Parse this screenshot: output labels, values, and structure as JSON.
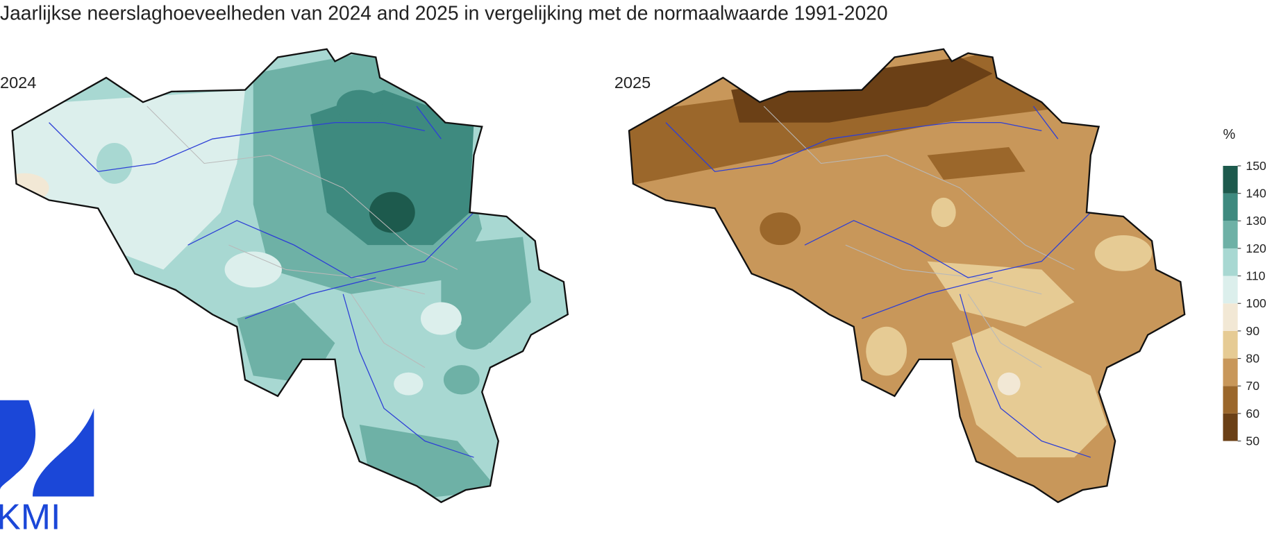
{
  "title": "Jaarlijkse neerslaghoeveelheden van 2024 and 2025 in vergelijking met de normaalwaarde 1991-2020",
  "panels": [
    {
      "label": "2024"
    },
    {
      "label": "2025"
    }
  ],
  "legend": {
    "unit": "%",
    "lim": [
      50,
      150
    ],
    "ticks": [
      150,
      140,
      130,
      120,
      110,
      100,
      90,
      80,
      70,
      60,
      50
    ],
    "colors": [
      "#6b4016",
      "#9b672b",
      "#c8975a",
      "#e6cb94",
      "#f2e8d5",
      "#dcefec",
      "#a8d8d2",
      "#6eb1a6",
      "#3e8a7f",
      "#1d5a4d"
    ]
  },
  "logo": {
    "text": "KMI"
  }
}
